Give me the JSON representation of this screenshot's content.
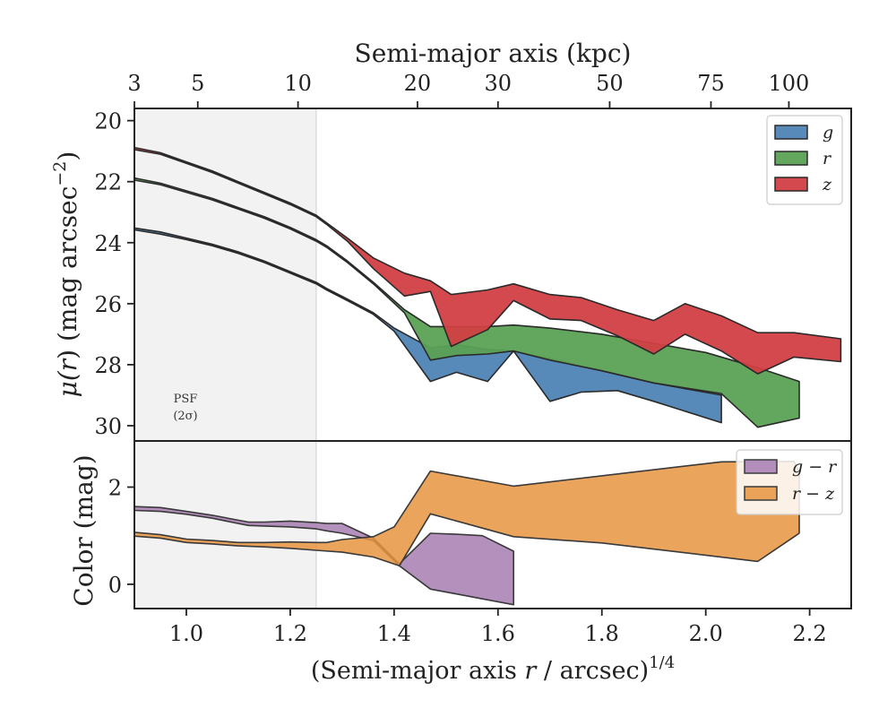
{
  "chart_data": [
    {
      "type": "area",
      "panel": "surface-brightness",
      "xlabel_main": "(Semi-major axis ",
      "xlabel_var": "r",
      "xlabel_unit": " / arcsec)",
      "xlabel_exp": "1/4",
      "top_xlabel": "Semi-major axis (kpc)",
      "top_ticks": [
        {
          "label": "3",
          "x": 0.9
        },
        {
          "label": "5",
          "x": 1.022
        },
        {
          "label": "10",
          "x": 1.215
        },
        {
          "label": "20",
          "x": 1.445
        },
        {
          "label": "30",
          "x": 1.6
        },
        {
          "label": "50",
          "x": 1.815
        },
        {
          "label": "75",
          "x": 2.01
        },
        {
          "label": "100",
          "x": 2.16
        }
      ],
      "ylabel_mu": "μ(",
      "ylabel_r": "r",
      "ylabel_rest": ") (mag arcsec",
      "ylabel_exp": "−2",
      "ylabel_close": ")",
      "xlim": [
        0.9,
        2.28
      ],
      "ylim": [
        30.5,
        19.6
      ],
      "y_inverted": true,
      "yticks": [
        20,
        22,
        24,
        26,
        28,
        30
      ],
      "xticks": [
        1.0,
        1.2,
        1.4,
        1.6,
        1.8,
        2.0,
        2.2
      ],
      "xtick_labels": [
        "1.0",
        "1.2",
        "1.4",
        "1.6",
        "1.8",
        "2.0",
        "2.2"
      ],
      "psf_region": {
        "x_end": 1.25,
        "label_line1": "PSF",
        "label_line2": "(2σ)"
      },
      "legend_position": "top-right",
      "series": [
        {
          "name": "g",
          "color": "#4e84b5",
          "upper": [
            [
              0.9,
              23.52
            ],
            [
              0.95,
              23.65
            ],
            [
              1.0,
              23.85
            ],
            [
              1.05,
              24.05
            ],
            [
              1.1,
              24.3
            ],
            [
              1.15,
              24.6
            ],
            [
              1.2,
              24.95
            ],
            [
              1.25,
              25.3
            ],
            [
              1.27,
              25.5
            ],
            [
              1.31,
              25.85
            ],
            [
              1.36,
              26.3
            ],
            [
              1.4,
              26.8
            ],
            [
              1.47,
              27.45
            ],
            [
              1.52,
              27.35
            ],
            [
              1.58,
              27.5
            ],
            [
              1.63,
              27.55
            ],
            [
              1.7,
              27.8
            ],
            [
              1.8,
              28.2
            ],
            [
              1.9,
              28.6
            ],
            [
              2.03,
              29.0
            ]
          ],
          "lower": [
            [
              0.9,
              23.58
            ],
            [
              0.95,
              23.72
            ],
            [
              1.0,
              23.9
            ],
            [
              1.05,
              24.1
            ],
            [
              1.1,
              24.35
            ],
            [
              1.15,
              24.65
            ],
            [
              1.2,
              25.0
            ],
            [
              1.25,
              25.35
            ],
            [
              1.27,
              25.55
            ],
            [
              1.31,
              25.9
            ],
            [
              1.36,
              26.35
            ],
            [
              1.4,
              26.9
            ],
            [
              1.47,
              28.55
            ],
            [
              1.52,
              28.25
            ],
            [
              1.58,
              28.55
            ],
            [
              1.63,
              27.55
            ],
            [
              1.7,
              29.2
            ],
            [
              1.76,
              28.9
            ],
            [
              1.83,
              28.85
            ],
            [
              1.9,
              29.2
            ],
            [
              2.03,
              29.9
            ]
          ]
        },
        {
          "name": "r",
          "color": "#5ba155",
          "upper": [
            [
              0.9,
              21.88
            ],
            [
              0.95,
              22.05
            ],
            [
              1.0,
              22.3
            ],
            [
              1.05,
              22.55
            ],
            [
              1.1,
              22.85
            ],
            [
              1.15,
              23.15
            ],
            [
              1.2,
              23.5
            ],
            [
              1.25,
              23.9
            ],
            [
              1.27,
              24.1
            ],
            [
              1.31,
              24.6
            ],
            [
              1.36,
              25.3
            ],
            [
              1.42,
              26.2
            ],
            [
              1.47,
              26.75
            ],
            [
              1.52,
              26.75
            ],
            [
              1.58,
              26.75
            ],
            [
              1.63,
              26.7
            ],
            [
              1.7,
              26.8
            ],
            [
              1.8,
              27.0
            ],
            [
              1.9,
              27.3
            ],
            [
              2.0,
              27.6
            ],
            [
              2.1,
              28.1
            ],
            [
              2.18,
              28.55
            ]
          ],
          "lower": [
            [
              0.9,
              21.95
            ],
            [
              0.95,
              22.1
            ],
            [
              1.0,
              22.35
            ],
            [
              1.05,
              22.6
            ],
            [
              1.1,
              22.9
            ],
            [
              1.15,
              23.2
            ],
            [
              1.2,
              23.55
            ],
            [
              1.25,
              23.95
            ],
            [
              1.27,
              24.15
            ],
            [
              1.31,
              24.65
            ],
            [
              1.36,
              25.35
            ],
            [
              1.42,
              26.3
            ],
            [
              1.47,
              27.85
            ],
            [
              1.52,
              27.7
            ],
            [
              1.58,
              27.65
            ],
            [
              1.63,
              27.55
            ],
            [
              1.7,
              27.85
            ],
            [
              1.8,
              28.2
            ],
            [
              1.9,
              28.6
            ],
            [
              2.03,
              28.95
            ],
            [
              2.1,
              30.05
            ],
            [
              2.18,
              29.75
            ]
          ]
        },
        {
          "name": "z",
          "color": "#d13f43",
          "upper": [
            [
              0.9,
              20.88
            ],
            [
              0.95,
              21.05
            ],
            [
              1.0,
              21.35
            ],
            [
              1.05,
              21.65
            ],
            [
              1.1,
              22.0
            ],
            [
              1.15,
              22.35
            ],
            [
              1.2,
              22.7
            ],
            [
              1.25,
              23.1
            ],
            [
              1.27,
              23.35
            ],
            [
              1.31,
              23.85
            ],
            [
              1.36,
              24.5
            ],
            [
              1.42,
              25.0
            ],
            [
              1.47,
              25.25
            ],
            [
              1.51,
              25.7
            ],
            [
              1.58,
              25.55
            ],
            [
              1.63,
              25.35
            ],
            [
              1.7,
              25.7
            ],
            [
              1.76,
              25.8
            ],
            [
              1.83,
              26.2
            ],
            [
              1.9,
              26.55
            ],
            [
              1.96,
              26.0
            ],
            [
              2.03,
              26.4
            ],
            [
              2.1,
              26.95
            ],
            [
              2.17,
              26.95
            ],
            [
              2.26,
              27.15
            ]
          ],
          "lower": [
            [
              0.9,
              20.95
            ],
            [
              0.95,
              21.1
            ],
            [
              1.0,
              21.4
            ],
            [
              1.05,
              21.7
            ],
            [
              1.1,
              22.05
            ],
            [
              1.15,
              22.4
            ],
            [
              1.2,
              22.75
            ],
            [
              1.25,
              23.15
            ],
            [
              1.27,
              23.4
            ],
            [
              1.31,
              23.95
            ],
            [
              1.36,
              24.85
            ],
            [
              1.42,
              25.75
            ],
            [
              1.47,
              25.6
            ],
            [
              1.51,
              27.4
            ],
            [
              1.58,
              26.85
            ],
            [
              1.63,
              25.9
            ],
            [
              1.7,
              26.5
            ],
            [
              1.76,
              26.55
            ],
            [
              1.83,
              27.05
            ],
            [
              1.9,
              27.65
            ],
            [
              1.96,
              27.0
            ],
            [
              2.03,
              27.55
            ],
            [
              2.1,
              28.3
            ],
            [
              2.17,
              27.75
            ],
            [
              2.26,
              27.9
            ]
          ]
        }
      ]
    },
    {
      "type": "area",
      "panel": "color",
      "ylabel": "Color (mag)",
      "xlim": [
        0.9,
        2.28
      ],
      "ylim": [
        -0.5,
        2.95
      ],
      "yticks": [
        0,
        2
      ],
      "legend_position": "top-right",
      "series": [
        {
          "name": "g − r",
          "color": "#a77db1",
          "upper": [
            [
              0.9,
              1.6
            ],
            [
              0.95,
              1.58
            ],
            [
              1.0,
              1.5
            ],
            [
              1.05,
              1.42
            ],
            [
              1.1,
              1.32
            ],
            [
              1.12,
              1.28
            ],
            [
              1.15,
              1.28
            ],
            [
              1.2,
              1.3
            ],
            [
              1.25,
              1.27
            ],
            [
              1.27,
              1.25
            ],
            [
              1.3,
              1.25
            ],
            [
              1.36,
              0.95
            ],
            [
              1.41,
              0.42
            ],
            [
              1.47,
              1.05
            ],
            [
              1.52,
              1.03
            ],
            [
              1.57,
              1.0
            ],
            [
              1.63,
              0.68
            ]
          ],
          "lower": [
            [
              0.9,
              1.52
            ],
            [
              0.95,
              1.5
            ],
            [
              1.0,
              1.44
            ],
            [
              1.05,
              1.36
            ],
            [
              1.1,
              1.25
            ],
            [
              1.12,
              1.21
            ],
            [
              1.15,
              1.2
            ],
            [
              1.2,
              1.18
            ],
            [
              1.25,
              1.14
            ],
            [
              1.27,
              1.1
            ],
            [
              1.3,
              1.05
            ],
            [
              1.36,
              0.9
            ],
            [
              1.41,
              0.38
            ],
            [
              1.47,
              -0.1
            ],
            [
              1.52,
              -0.2
            ],
            [
              1.57,
              -0.3
            ],
            [
              1.63,
              -0.42
            ]
          ]
        },
        {
          "name": "r − z",
          "color": "#e89440",
          "upper": [
            [
              0.9,
              1.07
            ],
            [
              0.95,
              1.02
            ],
            [
              1.0,
              0.93
            ],
            [
              1.05,
              0.9
            ],
            [
              1.1,
              0.86
            ],
            [
              1.15,
              0.86
            ],
            [
              1.2,
              0.87
            ],
            [
              1.25,
              0.86
            ],
            [
              1.27,
              0.86
            ],
            [
              1.3,
              0.92
            ],
            [
              1.36,
              0.98
            ],
            [
              1.4,
              1.18
            ],
            [
              1.47,
              2.33
            ],
            [
              1.63,
              2.02
            ],
            [
              2.03,
              2.52
            ],
            [
              2.17,
              2.53
            ],
            [
              2.18,
              2.3
            ]
          ],
          "lower": [
            [
              0.9,
              0.99
            ],
            [
              0.95,
              0.95
            ],
            [
              1.0,
              0.86
            ],
            [
              1.05,
              0.83
            ],
            [
              1.1,
              0.79
            ],
            [
              1.15,
              0.77
            ],
            [
              1.2,
              0.74
            ],
            [
              1.25,
              0.7
            ],
            [
              1.3,
              0.66
            ],
            [
              1.36,
              0.56
            ],
            [
              1.41,
              0.38
            ],
            [
              1.47,
              1.45
            ],
            [
              1.63,
              0.98
            ],
            [
              1.8,
              0.85
            ],
            [
              2.1,
              0.47
            ],
            [
              2.18,
              1.05
            ]
          ]
        }
      ]
    }
  ]
}
